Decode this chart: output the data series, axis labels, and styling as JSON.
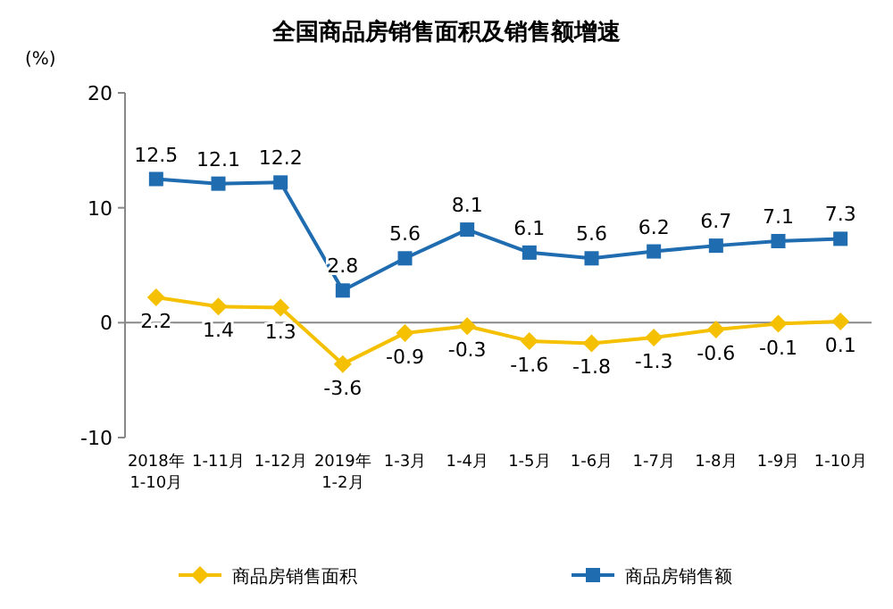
{
  "chart_data": {
    "type": "line",
    "title": "全国商品房销售面积及销售额增速",
    "ylabel": "(%)",
    "categories": [
      "2018年\n1-10月",
      "1-11月",
      "1-12月",
      "2019年\n1-2月",
      "1-3月",
      "1-4月",
      "1-5月",
      "1-6月",
      "1-7月",
      "1-8月",
      "1-9月",
      "1-10月"
    ],
    "series": [
      {
        "name": "商品房销售面积",
        "color": "#f5c000",
        "marker": "diamond",
        "values": [
          2.2,
          1.4,
          1.3,
          -3.6,
          -0.9,
          -0.3,
          -1.6,
          -1.8,
          -1.3,
          -0.6,
          -0.1,
          0.1
        ]
      },
      {
        "name": "商品房销售额",
        "color": "#1f6cb0",
        "marker": "square",
        "values": [
          12.5,
          12.1,
          12.2,
          2.8,
          5.6,
          8.1,
          6.1,
          5.6,
          6.2,
          6.7,
          7.1,
          7.3
        ]
      }
    ],
    "ylim": [
      -10,
      20
    ],
    "yticks": [
      -10,
      0,
      10,
      20
    ],
    "data_labels": true,
    "legend": "bottom"
  }
}
